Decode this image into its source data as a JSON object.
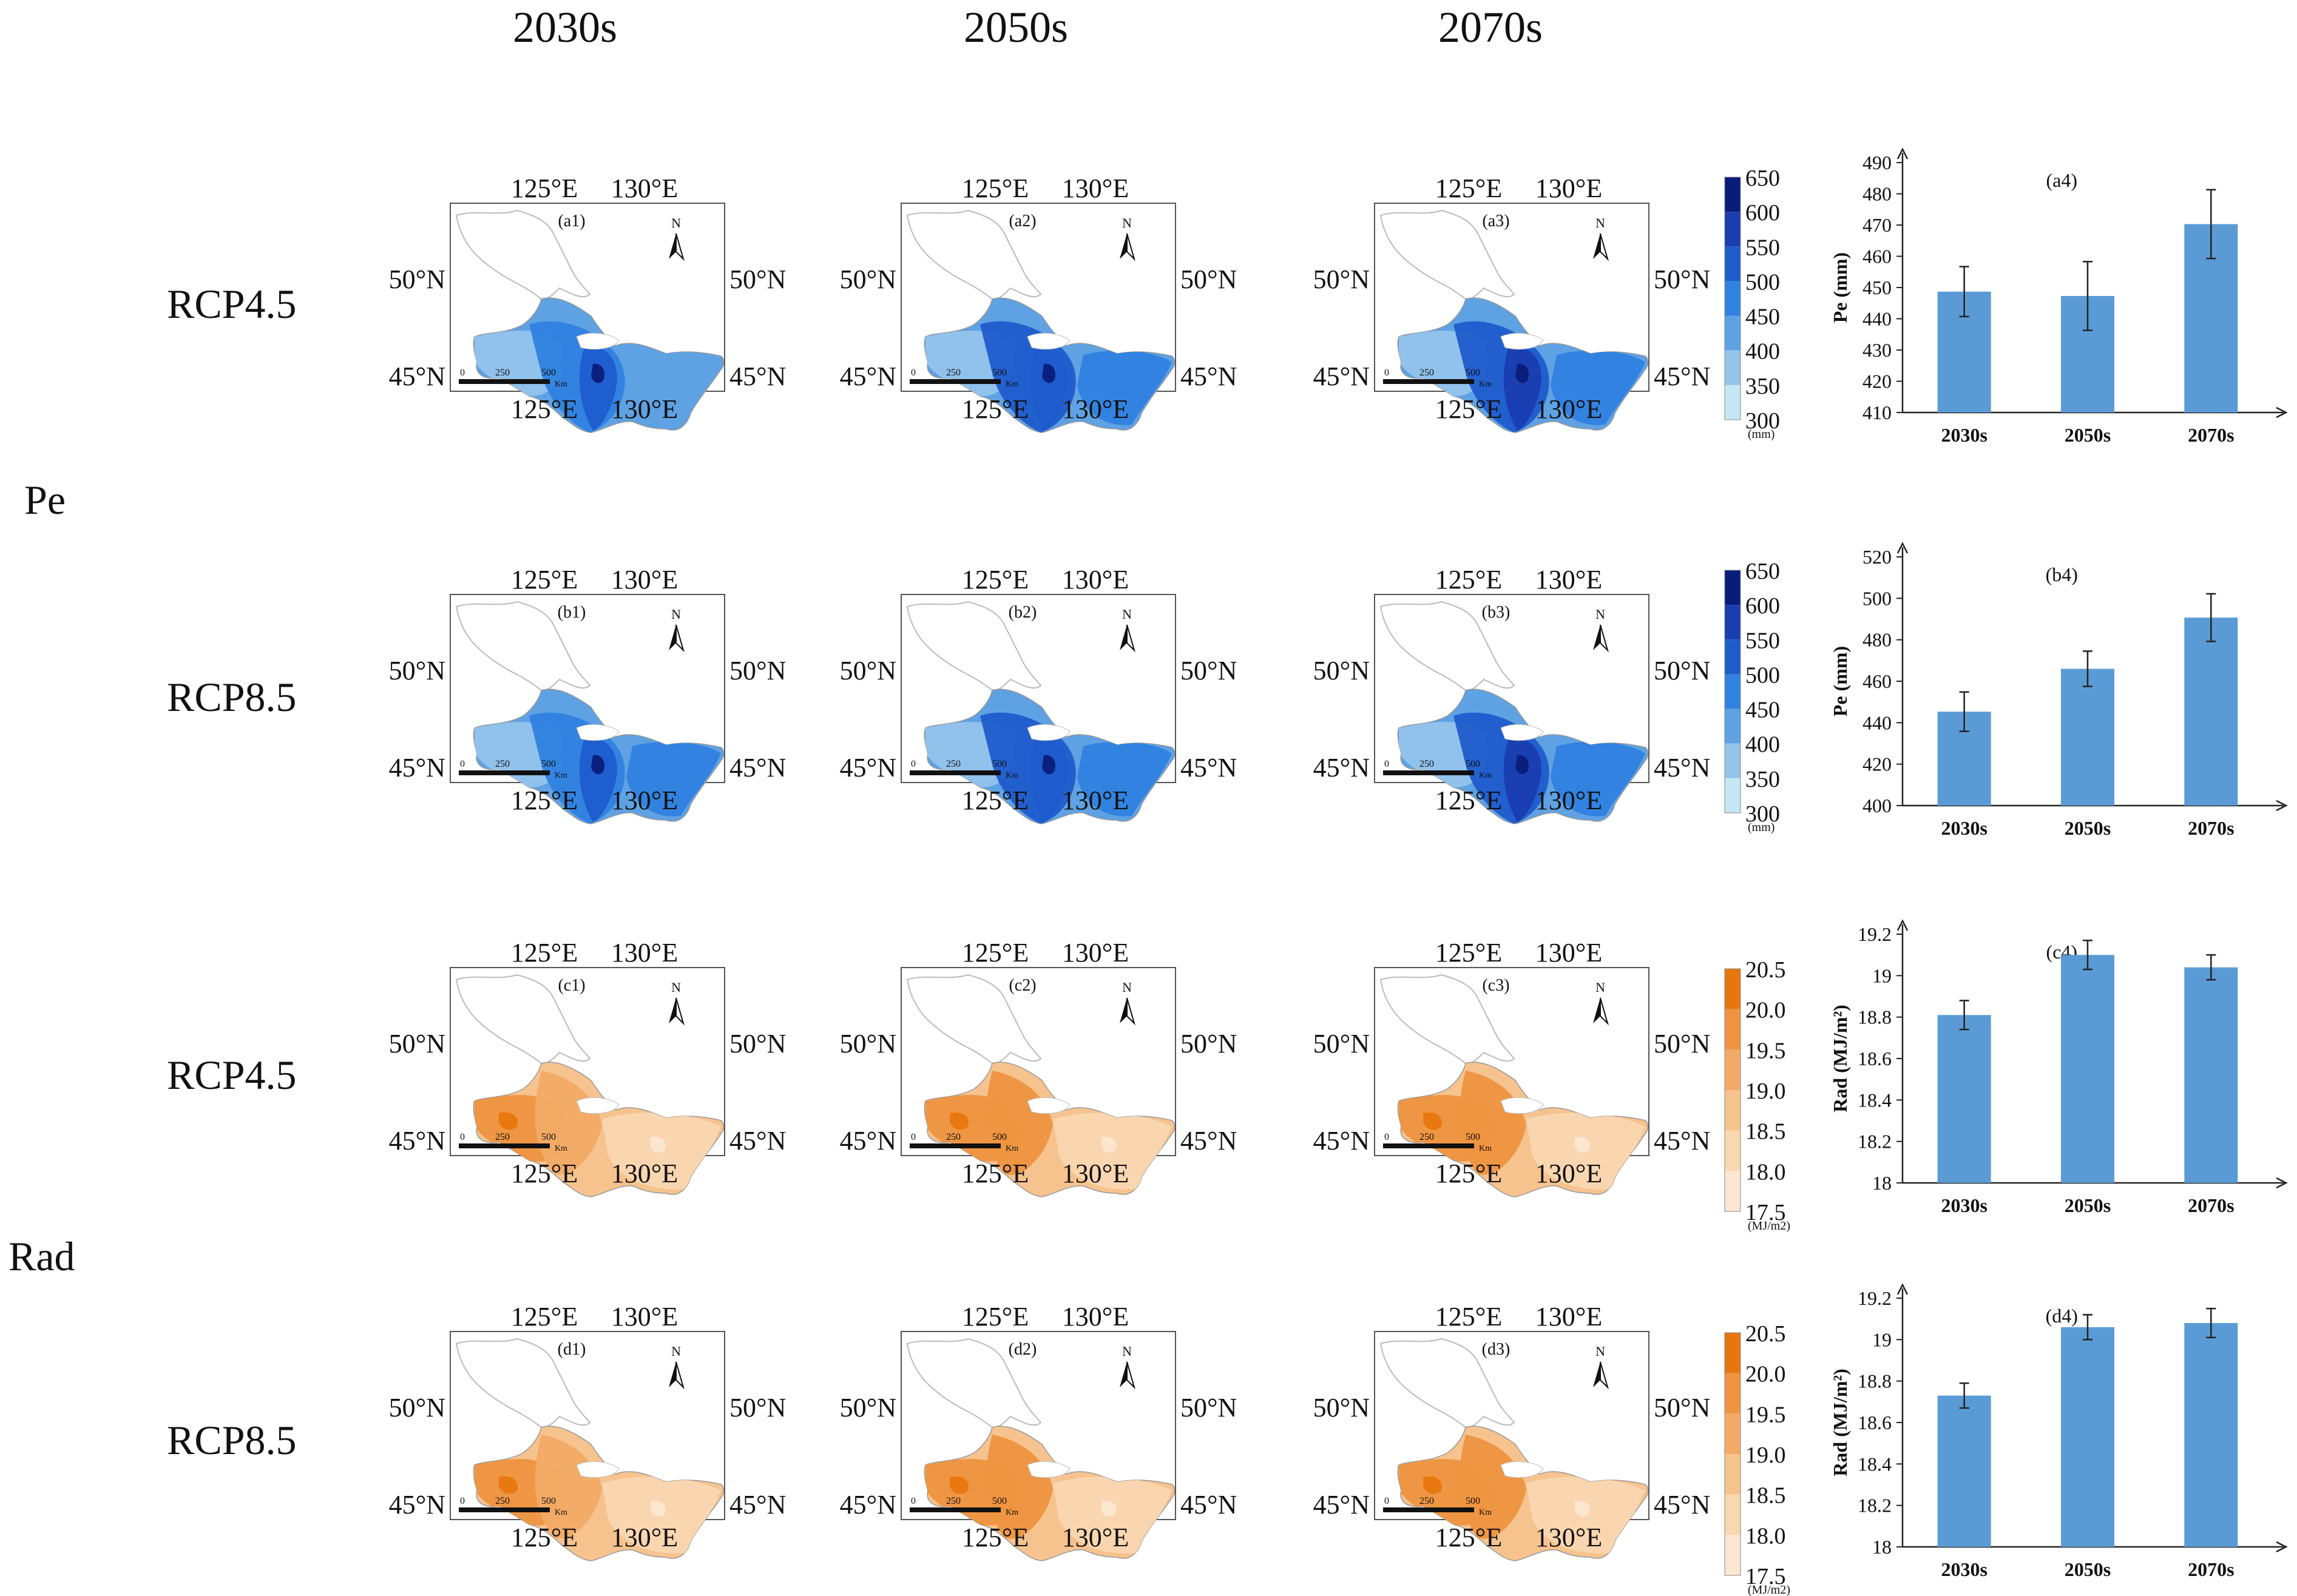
{
  "column_headers": [
    "2030s",
    "2050s",
    "2070s"
  ],
  "group_labels": [
    "Pe",
    "Rad"
  ],
  "row_labels": [
    "RCP4.5",
    "RCP8.5",
    "RCP4.5",
    "RCP8.5"
  ],
  "map_ticks": {
    "lon": [
      "125°E",
      "130°E"
    ],
    "lat": [
      "50°N",
      "45°N"
    ],
    "scale": [
      "0",
      "250",
      "500",
      "Km"
    ],
    "north": "N"
  },
  "map_panels": [
    [
      "(a1)",
      "(a2)",
      "(a3)"
    ],
    [
      "(b1)",
      "(b2)",
      "(b3)"
    ],
    [
      "(c1)",
      "(c2)",
      "(c3)"
    ],
    [
      "(d1)",
      "(d2)",
      "(d3)"
    ]
  ],
  "legends": [
    {
      "labels": [
        "650",
        "600",
        "550",
        "500",
        "450",
        "400",
        "350",
        "300"
      ],
      "unit": "(mm)"
    },
    {
      "labels": [
        "20.5",
        "20.0",
        "19.5",
        "19.0",
        "18.5",
        "18.0",
        "17.5"
      ],
      "unit": "(MJ/m2)"
    }
  ],
  "colors": {
    "blue_scale": [
      "#0a1c7a",
      "#1a3db0",
      "#1f5ccc",
      "#2f82e0",
      "#5fa2e3",
      "#93c4ec",
      "#c6e6f3"
    ],
    "orange_scale": [
      "#e8760e",
      "#ee9440",
      "#f2ab66",
      "#f6c38e",
      "#f9d7b1",
      "#fbe7d2"
    ],
    "bar": "#5b9bd5",
    "white_region": "#ffffff"
  },
  "chart_data": [
    {
      "type": "bar",
      "title": "(a4)",
      "categories": [
        "2030s",
        "2050s",
        "2070s"
      ],
      "values": [
        448.7,
        447.3,
        470.3
      ],
      "errors": [
        8,
        11,
        11
      ],
      "ylabel": "Pe (mm)",
      "ylim": [
        410,
        490
      ],
      "yticks": [
        "410",
        "420",
        "430",
        "440",
        "450",
        "460",
        "470",
        "480",
        "490"
      ]
    },
    {
      "type": "bar",
      "title": "(b4)",
      "categories": [
        "2030s",
        "2050s",
        "2070s"
      ],
      "values": [
        445.3,
        466.0,
        490.7
      ],
      "errors": [
        9.5,
        8.5,
        11.5
      ],
      "ylabel": "Pe (mm)",
      "ylim": [
        400,
        520
      ],
      "yticks": [
        "400",
        "420",
        "440",
        "460",
        "480",
        "500",
        "520"
      ]
    },
    {
      "type": "bar",
      "title": "(c4)",
      "categories": [
        "2030s",
        "2050s",
        "2070s"
      ],
      "values": [
        18.81,
        19.1,
        19.04
      ],
      "errors": [
        0.07,
        0.07,
        0.06
      ],
      "ylabel": "Rad (MJ/m²)",
      "ylim": [
        18,
        19.2
      ],
      "yticks": [
        "18",
        "18.2",
        "18.4",
        "18.6",
        "18.8",
        "19",
        "19.2"
      ]
    },
    {
      "type": "bar",
      "title": "(d4)",
      "categories": [
        "2030s",
        "2050s",
        "2070s"
      ],
      "values": [
        18.73,
        19.06,
        19.08
      ],
      "errors": [
        0.06,
        0.06,
        0.07
      ],
      "ylabel": "Rad (MJ/m²)",
      "ylim": [
        18,
        19.2
      ],
      "yticks": [
        "18",
        "18.2",
        "18.4",
        "18.6",
        "18.8",
        "19",
        "19.2"
      ]
    }
  ]
}
